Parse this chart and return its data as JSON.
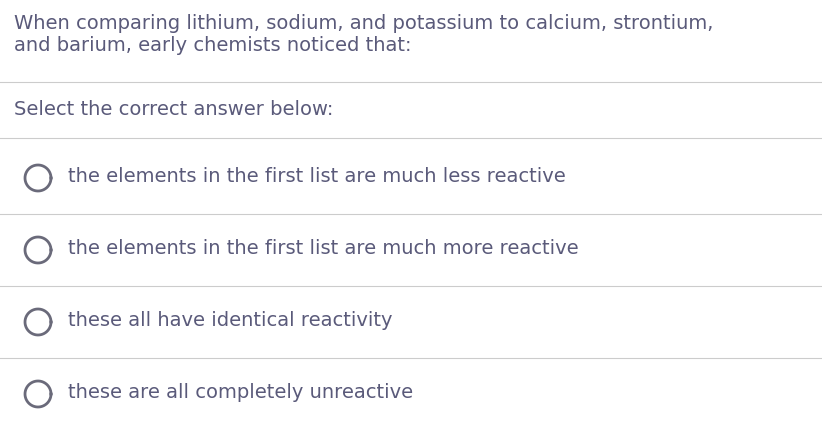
{
  "background_color": "#ffffff",
  "question_text_line1": "When comparing lithium, sodium, and potassium to calcium, strontium,",
  "question_text_line2": "and barium, early chemists noticed that:",
  "prompt_text": "Select the correct answer below:",
  "options": [
    "the elements in the first list are much less reactive",
    "the elements in the first list are much more reactive",
    "these all have identical reactivity",
    "these are all completely unreactive"
  ],
  "text_color": "#5a5a7a",
  "divider_color": "#cccccc",
  "circle_color": "#6a6a7a",
  "font_size_question": 14.0,
  "font_size_prompt": 14.0,
  "font_size_option": 14.0,
  "fig_width": 8.22,
  "fig_height": 4.26,
  "dpi": 100
}
